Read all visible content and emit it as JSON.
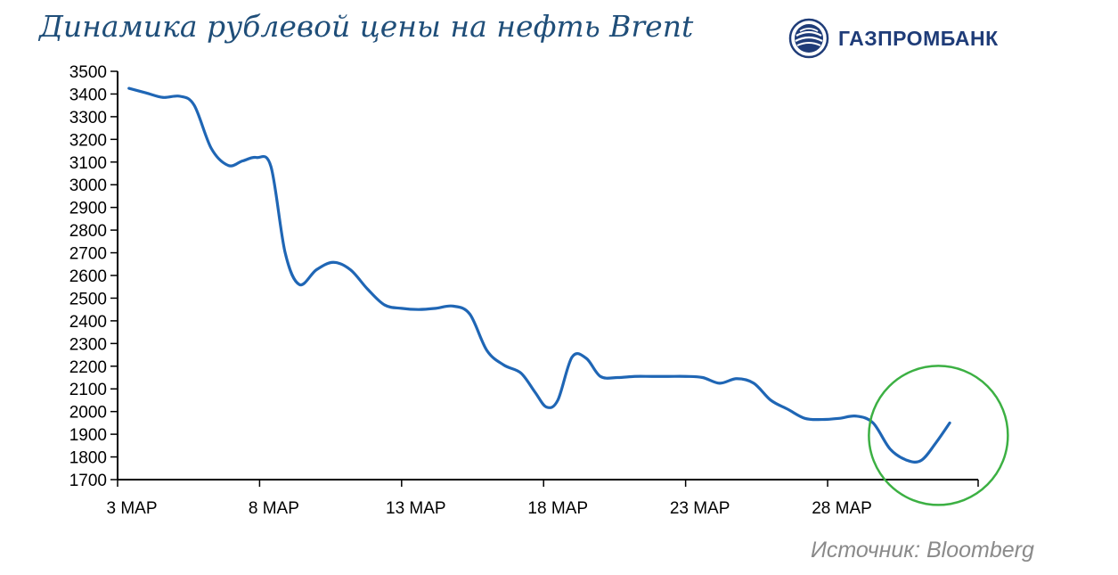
{
  "title": "Динамика рублевой цены на нефть Brent",
  "brand": {
    "name": "ГАЗПРОМБАНК",
    "logo_icon": "gazprombank-globe-logo"
  },
  "source": "Источник: Bloomberg",
  "chart_data": {
    "type": "line",
    "title": "Динамика рублевой цены на нефть Brent",
    "xlabel": "",
    "ylabel": "",
    "ylim": [
      1700,
      3500
    ],
    "yticks": [
      1700,
      1800,
      1900,
      2000,
      2100,
      2200,
      2300,
      2400,
      2500,
      2600,
      2700,
      2800,
      2900,
      3000,
      3100,
      3200,
      3300,
      3400,
      3500
    ],
    "xlim": [
      3,
      33.3
    ],
    "xticks": [
      {
        "day": 3,
        "label": "3 МАР"
      },
      {
        "day": 8,
        "label": "8 МАР"
      },
      {
        "day": 13,
        "label": "13 МАР"
      },
      {
        "day": 18,
        "label": "18 МАР"
      },
      {
        "day": 23,
        "label": "23 МАР"
      },
      {
        "day": 28,
        "label": "28 МАР"
      }
    ],
    "grid": false,
    "series": [
      {
        "color": "#1f66b5",
        "x": [
          3.4,
          4.0,
          4.6,
          5.2,
          5.7,
          6.3,
          6.9,
          7.4,
          7.9,
          8.4,
          8.9,
          9.4,
          10.0,
          10.6,
          11.2,
          11.8,
          12.4,
          13.0,
          13.6,
          14.2,
          14.8,
          15.4,
          16.0,
          16.6,
          17.2,
          17.7,
          18.1,
          18.5,
          19.0,
          19.5,
          20.0,
          20.6,
          21.2,
          21.8,
          22.4,
          23.0,
          23.6,
          24.2,
          24.8,
          25.4,
          26.0,
          26.6,
          27.2,
          27.8,
          28.4,
          29.0,
          29.6,
          30.2,
          30.8,
          31.3,
          31.8,
          32.3
        ],
        "y": [
          3425,
          3405,
          3385,
          3390,
          3350,
          3160,
          3085,
          3105,
          3120,
          3080,
          2700,
          2560,
          2625,
          2658,
          2625,
          2540,
          2470,
          2455,
          2450,
          2455,
          2465,
          2430,
          2270,
          2205,
          2170,
          2085,
          2020,
          2050,
          2240,
          2235,
          2155,
          2150,
          2155,
          2155,
          2155,
          2155,
          2150,
          2125,
          2145,
          2125,
          2050,
          2010,
          1970,
          1965,
          1970,
          1980,
          1950,
          1835,
          1785,
          1785,
          1860,
          1950
        ]
      }
    ],
    "annotation": {
      "type": "circle",
      "color": "#3cb043",
      "center": {
        "day": 31.9,
        "value": 1895
      },
      "note": ""
    }
  }
}
